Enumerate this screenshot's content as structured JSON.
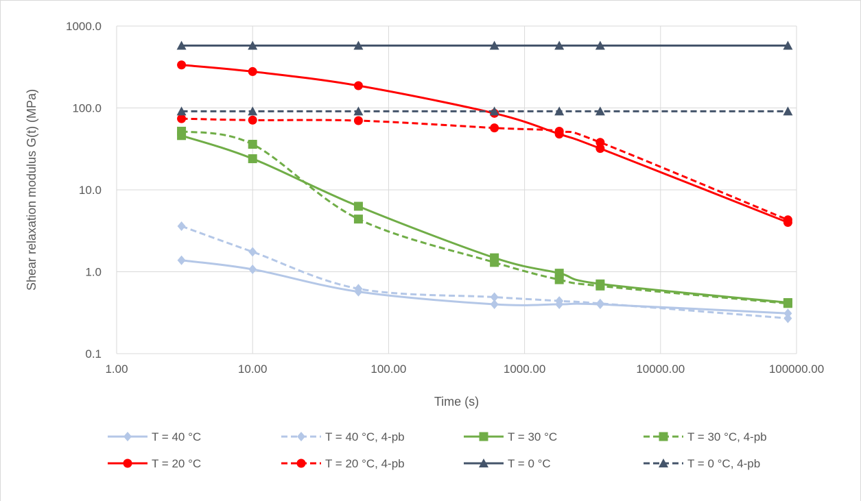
{
  "chart_data": {
    "type": "line",
    "title": "",
    "xlabel": "Time (s)",
    "ylabel": "Shear relaxation modulus G(t) (MPa)",
    "x_scale": "log",
    "y_scale": "log",
    "xlim": [
      1,
      100000
    ],
    "ylim": [
      0.1,
      1000
    ],
    "x_ticks": [
      1,
      10,
      100,
      1000,
      10000,
      100000
    ],
    "x_tick_labels": [
      "1.00",
      "10.00",
      "100.00",
      "1000.00",
      "10000.00",
      "100000.00"
    ],
    "y_ticks": [
      0.1,
      1,
      10,
      100,
      1000
    ],
    "y_tick_labels": [
      "0.1",
      "1.0",
      "10.0",
      "100.0",
      "1000.0"
    ],
    "grid": true,
    "legend_position": "bottom",
    "x": [
      3,
      10,
      60,
      600,
      1800,
      3600,
      86400
    ],
    "series": [
      {
        "name": "T = 40 °C",
        "color": "#b4c7e7",
        "dash": false,
        "marker": "diamond",
        "values": [
          1.38,
          1.07,
          0.57,
          0.4,
          0.4,
          0.4,
          0.31
        ]
      },
      {
        "name": "T = 40 °C, 4-pb",
        "color": "#b4c7e7",
        "dash": true,
        "marker": "diamond",
        "values": [
          3.6,
          1.75,
          0.62,
          0.49,
          0.44,
          0.41,
          0.27
        ]
      },
      {
        "name": "T = 30 °C",
        "color": "#70ad47",
        "dash": false,
        "marker": "square",
        "values": [
          46,
          24,
          6.3,
          1.48,
          0.96,
          0.71,
          0.42
        ]
      },
      {
        "name": "T = 30 °C, 4-pb",
        "color": "#70ad47",
        "dash": true,
        "marker": "square",
        "values": [
          52,
          36,
          4.4,
          1.3,
          0.8,
          0.67,
          0.41
        ]
      },
      {
        "name": "T = 20 °C",
        "color": "#ff0000",
        "dash": false,
        "marker": "circle",
        "values": [
          335,
          278,
          187,
          86,
          48,
          32,
          4.0
        ]
      },
      {
        "name": "T = 20 °C, 4-pb",
        "color": "#ff0000",
        "dash": true,
        "marker": "circle",
        "values": [
          74,
          71,
          70,
          57,
          52,
          38,
          4.3
        ]
      },
      {
        "name": "T = 0 °C",
        "color": "#44546a",
        "dash": false,
        "marker": "triangle",
        "values": [
          578,
          578,
          578,
          578,
          578,
          578,
          578
        ]
      },
      {
        "name": "T = 0 °C, 4-pb",
        "color": "#44546a",
        "dash": true,
        "marker": "triangle",
        "values": [
          91,
          91,
          91,
          91,
          91,
          91,
          91
        ]
      }
    ]
  }
}
